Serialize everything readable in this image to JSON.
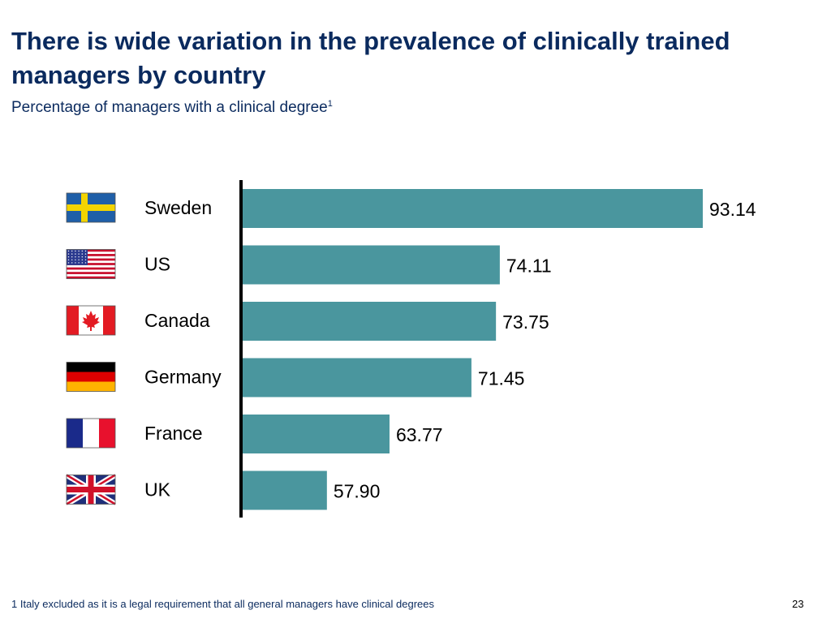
{
  "slide": {
    "title": "There is wide variation in the prevalence of clinically trained managers by country",
    "subtitle": "Percentage of managers with a clinical degree",
    "subtitle_sup": "1",
    "footnote": "1 Italy excluded as it is a legal requirement that all general managers have clinical degrees",
    "page_number": "23"
  },
  "colors": {
    "bar": "#4a969e",
    "title": "#0a2a5e",
    "axis": "#000000"
  },
  "chart_data": {
    "type": "bar",
    "orientation": "horizontal",
    "title": "",
    "xlabel": "",
    "ylabel": "",
    "categories": [
      "Sweden",
      "US",
      "Canada",
      "Germany",
      "France",
      "UK"
    ],
    "flag_icons": [
      "sweden-flag-icon",
      "us-flag-icon",
      "canada-flag-icon",
      "germany-flag-icon",
      "france-flag-icon",
      "uk-flag-icon"
    ],
    "values": [
      93.14,
      74.11,
      73.75,
      71.45,
      63.77,
      57.9
    ],
    "value_labels": [
      "93.14",
      "74.11",
      "73.75",
      "71.45",
      "63.77",
      "57.90"
    ],
    "xlim": [
      50,
      100
    ],
    "grid": false,
    "legend": "none"
  }
}
